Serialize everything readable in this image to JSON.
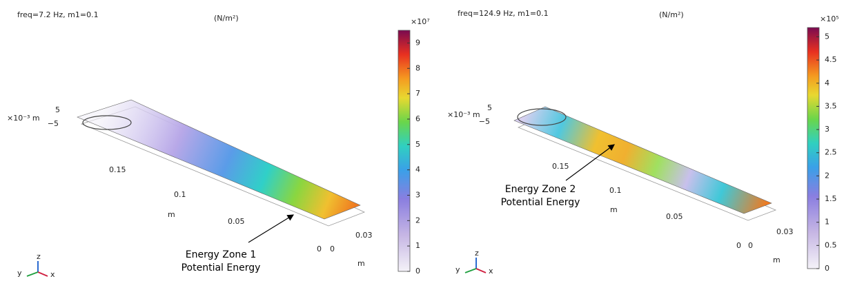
{
  "panels": [
    {
      "title": "freq=7.2 Hz, m1=0.1",
      "unit": "(N/m²)",
      "colorbar": {
        "label": "×10⁷",
        "lim": [
          0,
          9.5
        ],
        "ticks": [
          0,
          1,
          2,
          3,
          4,
          5,
          6,
          7,
          8,
          9
        ]
      },
      "z_ticks": [
        "5",
        "−5"
      ],
      "z_unit": "×10⁻³ m",
      "x_ticks": [
        "0.15",
        "0.1",
        "0.05"
      ],
      "x_label": "m",
      "origin_labels": [
        "0",
        "0"
      ],
      "y_ticks": [
        "0.03"
      ],
      "y_label": "m",
      "annotation": [
        "Energy Zone 1",
        "Potential Energy"
      ],
      "triad": [
        "y",
        "z",
        "x"
      ]
    },
    {
      "title": "freq=124.9 Hz, m1=0.1",
      "unit": "(N/m²)",
      "colorbar": {
        "label": "×10⁵",
        "lim": [
          0,
          5.2
        ],
        "ticks": [
          0,
          0.5,
          1,
          1.5,
          2,
          2.5,
          3,
          3.5,
          4,
          4.5,
          5
        ]
      },
      "z_ticks": [
        "5",
        "−5"
      ],
      "z_unit": "×10⁻³ m",
      "x_ticks": [
        "0.15",
        "0.1",
        "0.05"
      ],
      "x_label": "m",
      "origin_labels": [
        "0",
        "0"
      ],
      "y_ticks": [
        "0.03"
      ],
      "y_label": "m",
      "annotation": [
        "Energy Zone 2",
        "Potential Energy"
      ],
      "triad": [
        "y",
        "z",
        "x"
      ]
    }
  ]
}
